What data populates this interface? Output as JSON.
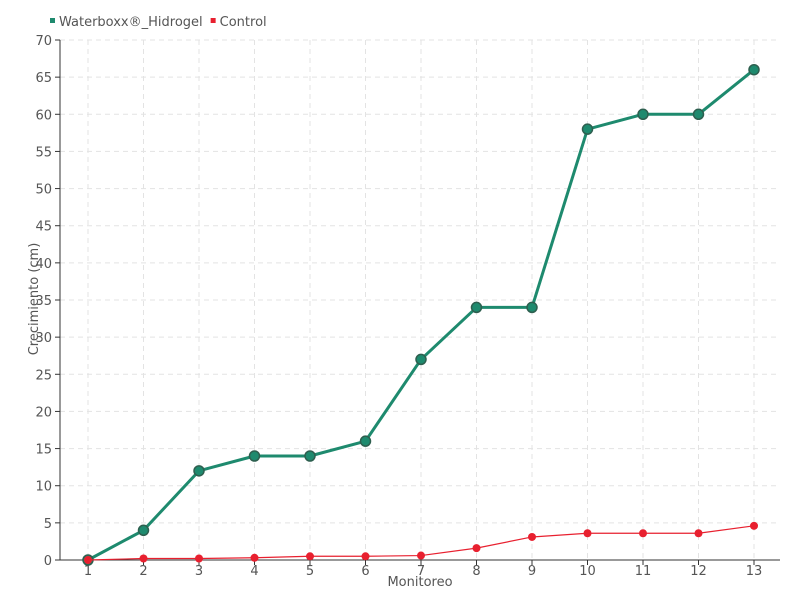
{
  "chart_data": {
    "type": "line",
    "title": "",
    "xlabel": "Monitoreo",
    "ylabel": "Crecimiento (cm)",
    "x": [
      "1",
      "2",
      "3",
      "4",
      "5",
      "6",
      "7",
      "8",
      "9",
      "10",
      "11",
      "12",
      "13"
    ],
    "ylim": [
      0,
      70
    ],
    "yticks": [
      0,
      5,
      10,
      15,
      20,
      25,
      30,
      35,
      40,
      45,
      50,
      55,
      60,
      65,
      70
    ],
    "grid": true,
    "legend_position": "top-left",
    "series": [
      {
        "name": "Waterboxx®_Hidrogel",
        "color": "#1e8a6e",
        "values": [
          0,
          4,
          12,
          14,
          14,
          16,
          27,
          34,
          34,
          58,
          60,
          60,
          66
        ]
      },
      {
        "name": "Control",
        "color": "#e8202f",
        "values": [
          0,
          0.2,
          0.2,
          0.3,
          0.5,
          0.5,
          0.6,
          1.6,
          3.1,
          3.6,
          3.6,
          3.6,
          4.6
        ]
      }
    ]
  }
}
